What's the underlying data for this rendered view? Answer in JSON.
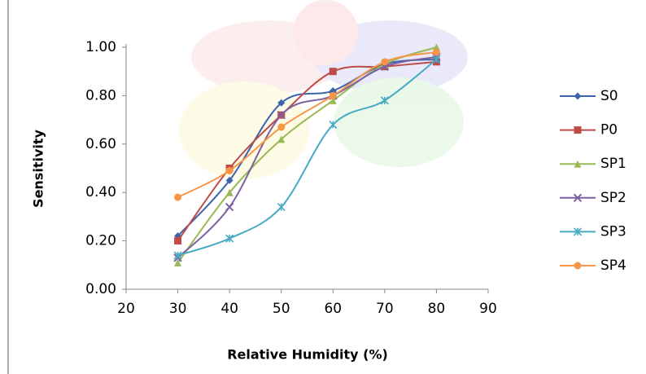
{
  "chart_data": {
    "type": "line",
    "smooth": true,
    "x_label": "Relative Humidity (%)",
    "y_label": "Sensitivity",
    "xlim": [
      20,
      90
    ],
    "xticks": [
      20,
      30,
      40,
      50,
      60,
      70,
      80,
      90
    ],
    "ylim": [
      0,
      1
    ],
    "yticks": [
      {
        "value": 0,
        "label": "0.00"
      },
      {
        "value": 0.2,
        "label": "0.20"
      },
      {
        "value": 0.4,
        "label": "0.40"
      },
      {
        "value": 0.6,
        "label": "0.60"
      },
      {
        "value": 0.8,
        "label": "0.80"
      },
      {
        "value": 1,
        "label": "1.00"
      }
    ],
    "legend": "right",
    "x": [
      30,
      40,
      50,
      60,
      70,
      80
    ],
    "series": [
      {
        "name": "S0",
        "color": "#3b64ad",
        "marker": "diamond",
        "values": [
          0.22,
          0.45,
          0.77,
          0.82,
          0.93,
          0.95
        ]
      },
      {
        "name": "P0",
        "color": "#be4b48",
        "marker": "square",
        "values": [
          0.2,
          0.5,
          0.72,
          0.9,
          0.92,
          0.94
        ]
      },
      {
        "name": "SP1",
        "color": "#98b954",
        "marker": "triangle",
        "values": [
          0.11,
          0.4,
          0.62,
          0.78,
          0.93,
          1.0
        ]
      },
      {
        "name": "SP2",
        "color": "#7d60a0",
        "marker": "x",
        "values": [
          0.13,
          0.34,
          0.72,
          0.8,
          0.92,
          0.96
        ]
      },
      {
        "name": "SP3",
        "color": "#46aac5",
        "marker": "star",
        "values": [
          0.14,
          0.21,
          0.34,
          0.68,
          0.78,
          0.95
        ]
      },
      {
        "name": "SP4",
        "color": "#f79646",
        "marker": "circle",
        "values": [
          0.38,
          0.49,
          0.67,
          0.8,
          0.94,
          0.98
        ]
      }
    ]
  }
}
